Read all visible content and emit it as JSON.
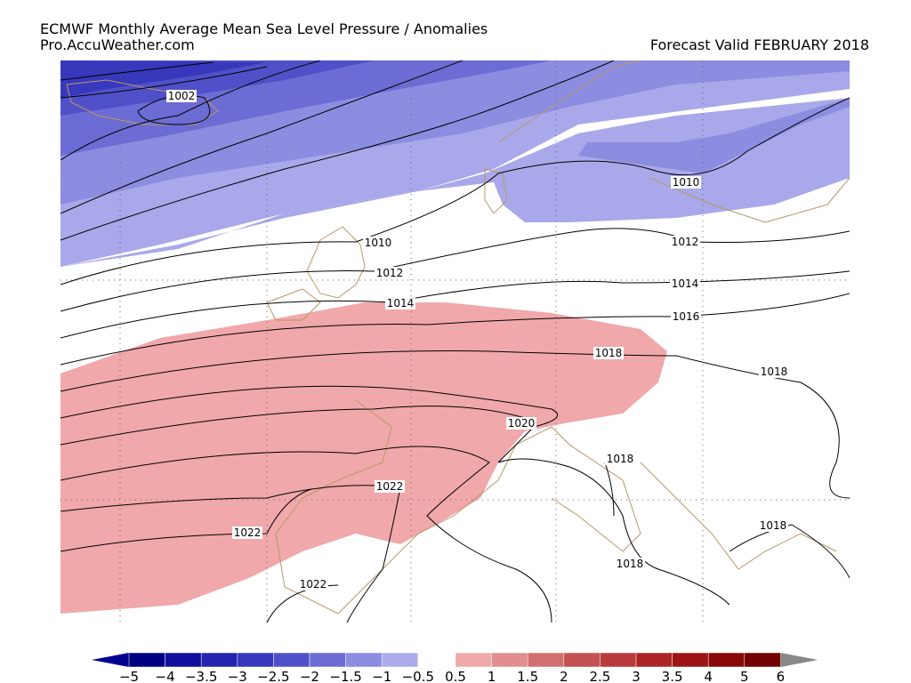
{
  "header": {
    "title": "ECMWF Monthly Average   Mean Sea Level Pressure / Anomalies",
    "source": "Pro.AccuWeather.com",
    "valid": "Forecast Valid FEBRUARY 2018"
  },
  "contour_labels": [
    "1002",
    "1010",
    "1010",
    "1012",
    "1012",
    "1014",
    "1014",
    "1016",
    "1018",
    "1018",
    "1020",
    "1018",
    "1018",
    "1018",
    "1022",
    "1022",
    "1022"
  ],
  "colorbar": {
    "labels": [
      "−5",
      "−4",
      "−3.5",
      "−3",
      "−2.5",
      "−2",
      "−1.5",
      "−1",
      "−0.5",
      "0.5",
      "1",
      "1.5",
      "2",
      "2.5",
      "3",
      "3.5",
      "4",
      "5",
      "6"
    ],
    "low_arrow_color": "#000090",
    "negative_colors": [
      "#000080",
      "#10109c",
      "#2424ac",
      "#3838bc",
      "#5050c8",
      "#6c6cd4",
      "#8c8ce0",
      "#acacec"
    ],
    "positive_colors": [
      "#f0a8a8",
      "#e08e8e",
      "#d27070",
      "#c45252",
      "#b83a3a",
      "#ac2424",
      "#9c1414",
      "#8a0808",
      "#720000"
    ],
    "high_arrow_color": "#888888"
  }
}
